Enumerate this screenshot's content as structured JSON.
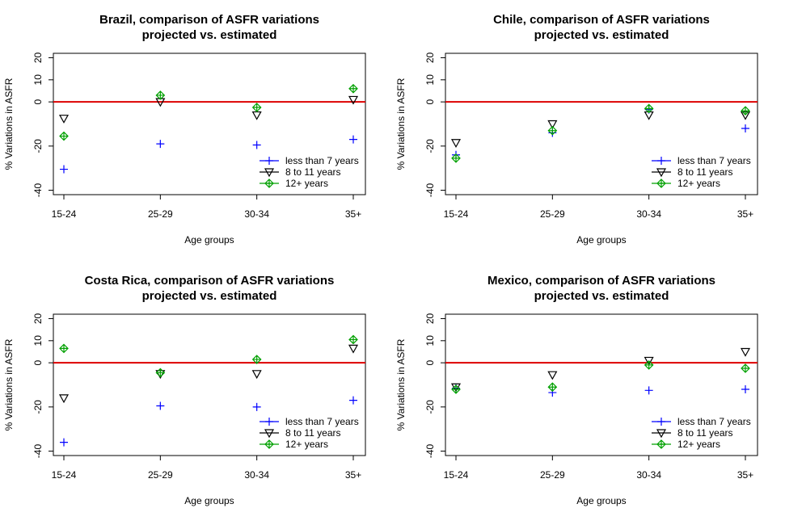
{
  "colors": {
    "less_than_7": "#0000ff",
    "eight_to_11": "#000000",
    "twelve_plus": "#00a000",
    "zero_line": "#dd0000"
  },
  "chart_data": [
    {
      "type": "scatter",
      "title": [
        "Brazil, comparison of ASFR variations",
        "projected vs. estimated"
      ],
      "xlabel": "Age groups",
      "ylabel": "% Variations in ASFR",
      "categories": [
        "15-24",
        "25-29",
        "30-34",
        "35+"
      ],
      "yticks": [
        "20",
        "10",
        "0",
        "-20",
        "-40"
      ],
      "ytick_values": [
        20,
        10,
        0,
        -20,
        -40
      ],
      "ylim": [
        -42,
        22
      ],
      "reference_line": 0,
      "legend_position": "bottom-right",
      "series": [
        {
          "name": "less than 7 years",
          "marker": "plus",
          "color_key": "less_than_7",
          "values": [
            -30.5,
            -19,
            -19.5,
            -17
          ]
        },
        {
          "name": "8 to 11 years",
          "marker": "triangle-down",
          "color_key": "eight_to_11",
          "values": [
            -7.5,
            0,
            -6,
            1
          ]
        },
        {
          "name": "12+ years",
          "marker": "diamond-plus",
          "color_key": "twelve_plus",
          "values": [
            -15.5,
            3,
            -2.5,
            6
          ]
        }
      ]
    },
    {
      "type": "scatter",
      "title": [
        "Chile, comparison of ASFR variations",
        "projected vs. estimated"
      ],
      "xlabel": "Age groups",
      "ylabel": "% Variations in ASFR",
      "categories": [
        "15-24",
        "25-29",
        "30-34",
        "35+"
      ],
      "yticks": [
        "20",
        "10",
        "0",
        "-20",
        "-40"
      ],
      "ytick_values": [
        20,
        10,
        0,
        -20,
        -40
      ],
      "ylim": [
        -42,
        22
      ],
      "reference_line": 0,
      "legend_position": "bottom-right",
      "series": [
        {
          "name": "less than 7 years",
          "marker": "plus",
          "color_key": "less_than_7",
          "values": [
            -24,
            -14,
            -3.5,
            -12
          ]
        },
        {
          "name": "8 to 11 years",
          "marker": "triangle-down",
          "color_key": "eight_to_11",
          "values": [
            -18.5,
            -10,
            -6,
            -6
          ]
        },
        {
          "name": "12+ years",
          "marker": "diamond-plus",
          "color_key": "twelve_plus",
          "values": [
            -25.5,
            -13,
            -3,
            -4
          ]
        }
      ]
    },
    {
      "type": "scatter",
      "title": [
        "Costa Rica, comparison of ASFR variations",
        "projected vs. estimated"
      ],
      "xlabel": "Age groups",
      "ylabel": "% Variations in ASFR",
      "categories": [
        "15-24",
        "25-29",
        "30-34",
        "35+"
      ],
      "yticks": [
        "20",
        "10",
        "0",
        "-20",
        "-40"
      ],
      "ytick_values": [
        20,
        10,
        0,
        -20,
        -40
      ],
      "ylim": [
        -42,
        22
      ],
      "reference_line": 0,
      "legend_position": "bottom-right",
      "series": [
        {
          "name": "less than 7 years",
          "marker": "plus",
          "color_key": "less_than_7",
          "values": [
            -36,
            -19.5,
            -20,
            -17
          ]
        },
        {
          "name": "8 to 11 years",
          "marker": "triangle-down",
          "color_key": "eight_to_11",
          "values": [
            -16,
            -5,
            -5,
            6.5
          ]
        },
        {
          "name": "12+ years",
          "marker": "diamond-plus",
          "color_key": "twelve_plus",
          "values": [
            6.5,
            -4.5,
            1.5,
            10.5
          ]
        }
      ]
    },
    {
      "type": "scatter",
      "title": [
        "Mexico, comparison of ASFR variations",
        "projected vs. estimated"
      ],
      "xlabel": "Age groups",
      "ylabel": "% Variations in ASFR",
      "categories": [
        "15-24",
        "25-29",
        "30-34",
        "35+"
      ],
      "yticks": [
        "20",
        "10",
        "0",
        "-20",
        "-40"
      ],
      "ytick_values": [
        20,
        10,
        0,
        -20,
        -40
      ],
      "ylim": [
        -42,
        22
      ],
      "reference_line": 0,
      "legend_position": "bottom-right",
      "series": [
        {
          "name": "less than 7 years",
          "marker": "plus",
          "color_key": "less_than_7",
          "values": [
            -11.5,
            -13.5,
            -12.5,
            -12
          ]
        },
        {
          "name": "8 to 11 years",
          "marker": "triangle-down",
          "color_key": "eight_to_11",
          "values": [
            -11,
            -5.5,
            1,
            5
          ]
        },
        {
          "name": "12+ years",
          "marker": "diamond-plus",
          "color_key": "twelve_plus",
          "values": [
            -12,
            -11,
            -1,
            -2.5
          ]
        }
      ]
    }
  ]
}
